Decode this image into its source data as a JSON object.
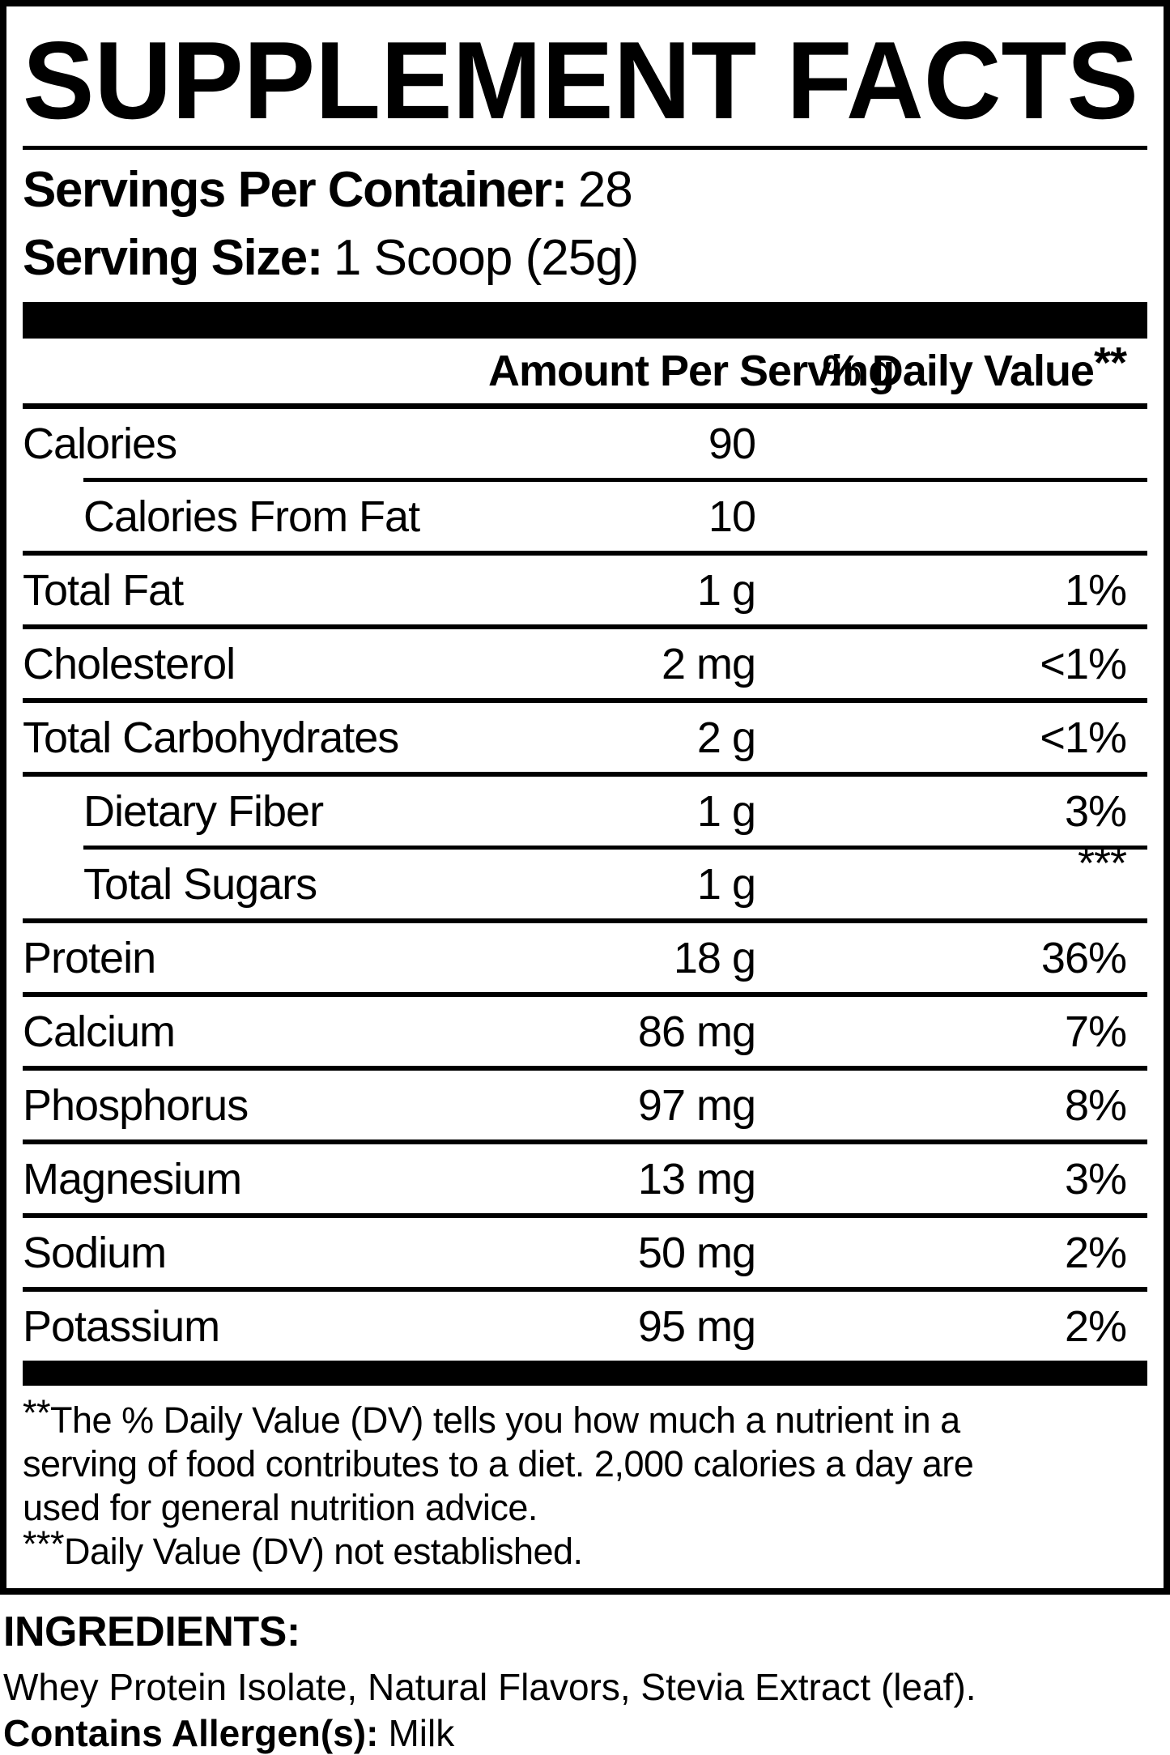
{
  "colors": {
    "foreground": "#000000",
    "background": "#ffffff"
  },
  "title": "SUPPLEMENT FACTS",
  "serving": {
    "servings_per_container_label": "Servings Per Container:",
    "servings_per_container_value": "28",
    "serving_size_label": "Serving Size:",
    "serving_size_value": "1 Scoop (25g)"
  },
  "table": {
    "header": {
      "amount": "Amount Per Serving",
      "dv": "% Daily Value",
      "dv_sup": "**"
    },
    "rows": [
      {
        "name": "Calories",
        "amount": "90",
        "dv": ""
      },
      {
        "name": "Calories From Fat",
        "amount": "10",
        "dv": ""
      },
      {
        "name": "Total Fat",
        "amount": "1 g",
        "dv": "1%"
      },
      {
        "name": "Cholesterol",
        "amount": "2 mg",
        "dv": "<1%"
      },
      {
        "name": "Total Carbohydrates",
        "amount": "2 g",
        "dv": "<1%"
      },
      {
        "name": "Dietary Fiber",
        "amount": "1 g",
        "dv": "3%"
      },
      {
        "name": "Total Sugars",
        "amount": "1 g",
        "dv": "***"
      },
      {
        "name": "Protein",
        "amount": "18 g",
        "dv": "36%"
      },
      {
        "name": "Calcium",
        "amount": "86 mg",
        "dv": "7%"
      },
      {
        "name": "Phosphorus",
        "amount": "97 mg",
        "dv": "8%"
      },
      {
        "name": "Magnesium",
        "amount": "13 mg",
        "dv": "3%"
      },
      {
        "name": "Sodium",
        "amount": "50 mg",
        "dv": "2%"
      },
      {
        "name": "Potassium",
        "amount": "95 mg",
        "dv": "2%"
      }
    ]
  },
  "footnotes": {
    "dv_note_prefix": "**",
    "dv_note": "The % Daily Value (DV) tells you how much a nutrient in a\nserving of food contributes to a diet. 2,000 calories a day are\nused for general nutrition advice.",
    "nd_note_prefix": "***",
    "nd_note": "Daily Value (DV) not established."
  },
  "ingredients": {
    "heading": "INGREDIENTS:",
    "list": "Whey Protein Isolate, Natural Flavors, Stevia Extract (leaf).",
    "allergen_label": "Contains Allergen(s):",
    "allergen_value": "Milk"
  }
}
